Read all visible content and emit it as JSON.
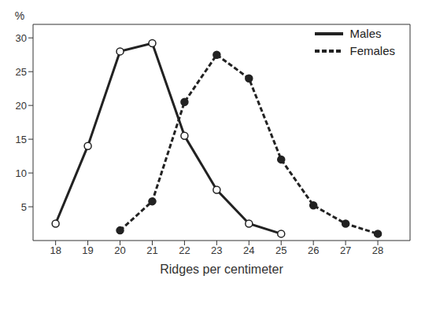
{
  "chart_data": {
    "type": "line",
    "xlabel": "Ridges per centimeter",
    "ylabel": "%",
    "xlim": [
      17.3,
      29
    ],
    "xticks": [
      18,
      19,
      20,
      21,
      22,
      23,
      24,
      25,
      26,
      27,
      28
    ],
    "ylim": [
      0,
      32
    ],
    "yticks": [
      5,
      10,
      15,
      20,
      25,
      30
    ],
    "grid": false,
    "legend": "upper right",
    "series": [
      {
        "name": "Males",
        "color": "#222222",
        "marker": "open_circle",
        "line_style": "solid",
        "x": [
          18,
          19,
          20,
          21,
          22,
          23,
          24,
          25
        ],
        "values": [
          2.5,
          14,
          28,
          29.2,
          15.5,
          7.5,
          2.5,
          1
        ]
      },
      {
        "name": "Females",
        "color": "#222222",
        "marker": "circle",
        "line_style": "dashed",
        "x": [
          20,
          21,
          22,
          23,
          24,
          25,
          26,
          27,
          28
        ],
        "values": [
          1.5,
          5.8,
          20.5,
          27.5,
          24,
          12,
          5.2,
          2.5,
          1
        ]
      }
    ]
  }
}
